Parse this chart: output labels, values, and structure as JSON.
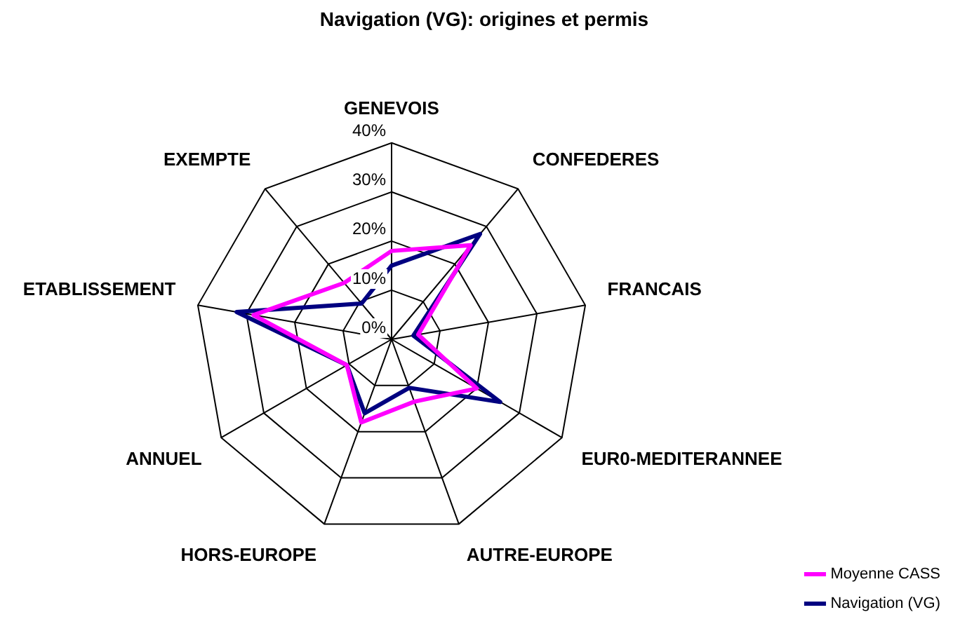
{
  "chart_data": {
    "type": "radar",
    "title": "Navigation (VG): origines et permis",
    "categories": [
      "GENEVOIS",
      "CONFEDERES",
      "FRANCAIS",
      "EUR0-MEDITERANNEE",
      "AUTRE-EUROPE",
      "HORS-EUROPE",
      "ANNUEL",
      "ETABLISSEMENT",
      "EXEMPTE"
    ],
    "series": [
      {
        "name": "Moyenne CASS",
        "color": "#ff00ff",
        "values": [
          18,
          25,
          5.5,
          20,
          13.5,
          18,
          10.5,
          28.5,
          15
        ]
      },
      {
        "name": "Navigation (VG)",
        "color": "#000080",
        "values": [
          15,
          28,
          4.5,
          25.5,
          10.5,
          16,
          10.5,
          32,
          9.5
        ]
      }
    ],
    "ylim": [
      0,
      40
    ],
    "yticks": [
      {
        "value": 0,
        "label": "0%"
      },
      {
        "value": 10,
        "label": "10%"
      },
      {
        "value": 20,
        "label": "20%"
      },
      {
        "value": 30,
        "label": "30%"
      },
      {
        "value": 40,
        "label": "40%"
      }
    ],
    "grid": true,
    "legend": "bottom right",
    "marker": "none",
    "line_style": "solid"
  }
}
